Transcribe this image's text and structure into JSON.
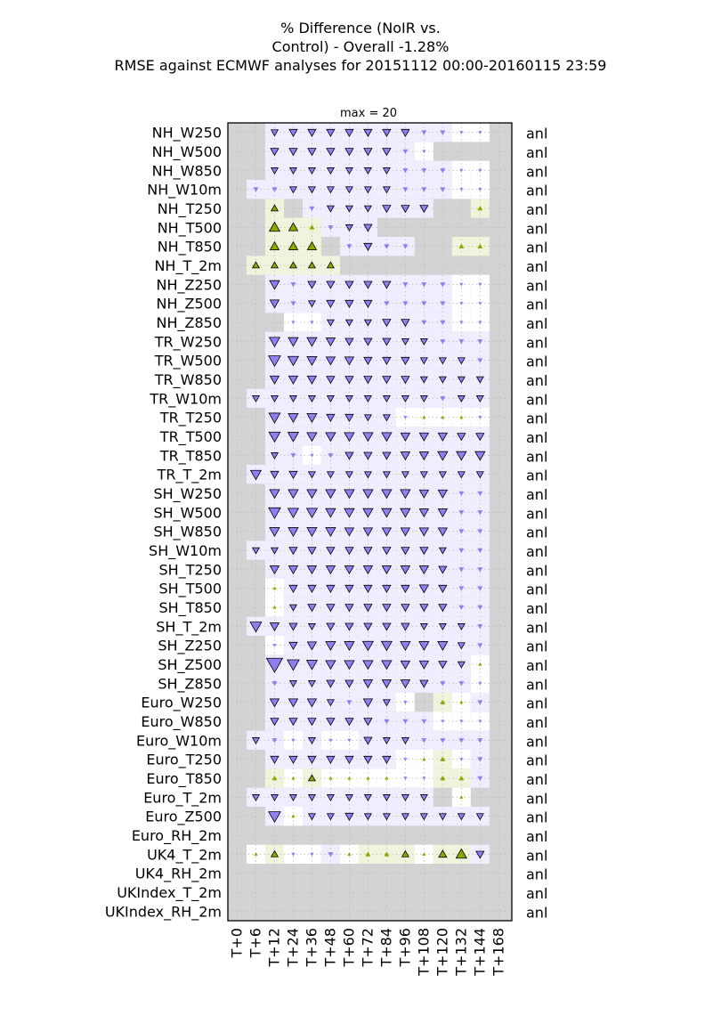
{
  "chart_data": {
    "type": "heatmap",
    "title_lines": [
      "% Difference (NoIR vs.",
      "Control) - Overall -1.28%",
      "RMSE against ECMWF analyses for 20151112 00:00-20160115 23:59"
    ],
    "subtitle": "max = 20",
    "x_ticks": [
      "T+0",
      "T+6",
      "T+12",
      "T+24",
      "T+36",
      "T+48",
      "T+60",
      "T+72",
      "T+84",
      "T+96",
      "T+108",
      "T+120",
      "T+132",
      "T+144",
      "T+168"
    ],
    "rows": [
      "NH_W250",
      "NH_W500",
      "NH_W850",
      "NH_W10m",
      "NH_T250",
      "NH_T500",
      "NH_T850",
      "NH_T_2m",
      "NH_Z250",
      "NH_Z500",
      "NH_Z850",
      "TR_W250",
      "TR_W500",
      "TR_W850",
      "TR_W10m",
      "TR_T250",
      "TR_T500",
      "TR_T850",
      "TR_T_2m",
      "SH_W250",
      "SH_W500",
      "SH_W850",
      "SH_W10m",
      "SH_T250",
      "SH_T500",
      "SH_T850",
      "SH_T_2m",
      "SH_Z250",
      "SH_Z500",
      "SH_Z850",
      "Euro_W250",
      "Euro_W850",
      "Euro_W10m",
      "Euro_T250",
      "Euro_T850",
      "Euro_T_2m",
      "Euro_Z500",
      "Euro_RH_2m",
      "UK4_T_2m",
      "UK4_RH_2m",
      "UKIndex_T_2m",
      "UKIndex_RH_2m"
    ],
    "right_labels": [
      "anl",
      "anl",
      "anl",
      "anl",
      "anl",
      "anl",
      "anl",
      "anl",
      "anl",
      "anl",
      "anl",
      "anl",
      "anl",
      "anl",
      "anl",
      "anl",
      "anl",
      "anl",
      "anl",
      "anl",
      "anl",
      "anl",
      "anl",
      "anl",
      "anl",
      "anl",
      "anl",
      "anl",
      "anl",
      "anl",
      "anl",
      "anl",
      "anl",
      "anl",
      "anl",
      "anl",
      "anl",
      "anl",
      "anl",
      "anl",
      "anl",
      "anl"
    ],
    "max": 20,
    "values": [
      [
        null,
        null,
        -2,
        -3,
        -3,
        -3,
        -3,
        -3,
        -3,
        -3,
        -1,
        -1,
        -0.5,
        -0.5,
        null
      ],
      [
        null,
        null,
        -3,
        -3,
        -3,
        -3,
        -3,
        -3,
        -3,
        -1,
        -0.5,
        null,
        null,
        null,
        null
      ],
      [
        null,
        null,
        -2,
        -2,
        -2,
        -2,
        -2,
        -2,
        -2,
        -1,
        -1,
        -1,
        -0.5,
        -0.5,
        null
      ],
      [
        null,
        -1,
        -1,
        -2,
        -2,
        -2,
        -2,
        -2,
        -2,
        -1,
        -1,
        -1,
        -0.5,
        -0.5,
        null
      ],
      [
        null,
        null,
        2,
        null,
        -1,
        -2,
        -2,
        -2,
        -3,
        -3,
        -3,
        null,
        null,
        1,
        null
      ],
      [
        null,
        null,
        6,
        4,
        1,
        -1,
        -2,
        -3,
        null,
        null,
        null,
        null,
        null,
        null,
        null
      ],
      [
        null,
        null,
        4,
        4,
        4,
        null,
        -1,
        -3,
        -1,
        -1,
        null,
        null,
        1,
        1,
        null
      ],
      [
        null,
        2,
        2,
        2,
        2,
        2,
        null,
        null,
        null,
        null,
        null,
        null,
        null,
        null,
        null
      ],
      [
        null,
        null,
        -5,
        -1,
        -3,
        -3,
        -3,
        -3,
        -3,
        -1,
        -1,
        -1,
        -0.5,
        -0.5,
        null
      ],
      [
        null,
        null,
        -4,
        -1,
        -2,
        -3,
        -3,
        -3,
        -1,
        -1,
        -1,
        -1,
        -0.5,
        -0.5,
        null
      ],
      [
        null,
        null,
        null,
        -0.5,
        -0.5,
        -2,
        -2,
        -2,
        -3,
        -3,
        -1,
        -1,
        -0.5,
        -0.5,
        null
      ],
      [
        null,
        null,
        -6,
        -5,
        -5,
        -4,
        -3,
        -3,
        -3,
        -2,
        -2,
        -1,
        -1,
        -1,
        null
      ],
      [
        null,
        null,
        -8,
        -6,
        -5,
        -4,
        -4,
        -3,
        -3,
        -3,
        -2,
        -2,
        -2,
        -1,
        null
      ],
      [
        null,
        null,
        -4,
        -4,
        -4,
        -3,
        -3,
        -3,
        -3,
        -3,
        -2,
        -2,
        -2,
        -2,
        null
      ],
      [
        null,
        -2,
        -2,
        -2,
        -2,
        -2,
        -2,
        -2,
        -2,
        -2,
        -2,
        -1,
        -2,
        -2,
        null
      ],
      [
        null,
        null,
        -7,
        -5,
        -5,
        -3,
        -3,
        -2,
        -2,
        -0.5,
        0.5,
        0.5,
        0.5,
        -0.5,
        null
      ],
      [
        null,
        null,
        -7,
        -6,
        -5,
        -5,
        -5,
        -5,
        -5,
        -4,
        -4,
        -4,
        -3,
        -3,
        null
      ],
      [
        null,
        null,
        -2,
        -1,
        -0.5,
        -1,
        -3,
        -3,
        -3,
        -4,
        -4,
        -5,
        -5,
        -5,
        null
      ],
      [
        null,
        -6,
        -3,
        -3,
        -2,
        -2,
        -2,
        -2,
        -2,
        -2,
        -2,
        -2,
        -2,
        -2,
        null
      ],
      [
        null,
        null,
        -5,
        -5,
        -5,
        -5,
        -5,
        -5,
        -5,
        -5,
        -4,
        -4,
        -1,
        -1,
        null
      ],
      [
        null,
        null,
        -8,
        -6,
        -6,
        -5,
        -5,
        -5,
        -5,
        -5,
        -4,
        -4,
        -1,
        -1,
        null
      ],
      [
        null,
        null,
        -5,
        -5,
        -5,
        -5,
        -4,
        -4,
        -4,
        -4,
        -4,
        -4,
        -1,
        -1,
        null
      ],
      [
        null,
        -2,
        -2,
        -3,
        -3,
        -3,
        -3,
        -3,
        -3,
        -3,
        -3,
        -2,
        -1,
        -1,
        null
      ],
      [
        null,
        null,
        -4,
        -4,
        -4,
        -4,
        -4,
        -4,
        -4,
        -4,
        -4,
        -3,
        -1,
        -1,
        null
      ],
      [
        null,
        null,
        0.5,
        -3,
        -3,
        -3,
        -3,
        -3,
        -3,
        -3,
        -4,
        -3,
        -1,
        -1,
        null
      ],
      [
        null,
        null,
        0.5,
        -2,
        -3,
        -3,
        -3,
        -3,
        -3,
        -3,
        -3,
        -3,
        -1,
        -1,
        null
      ],
      [
        null,
        -7,
        -4,
        -3,
        -2,
        -3,
        -3,
        -3,
        -3,
        -3,
        -2,
        -2,
        -2,
        -1,
        null
      ],
      [
        null,
        null,
        -0.5,
        -3,
        -4,
        -5,
        -5,
        -6,
        -6,
        -5,
        -5,
        -5,
        -2,
        -1,
        null
      ],
      [
        null,
        null,
        -16,
        -8,
        -6,
        -5,
        -5,
        -5,
        -5,
        -4,
        -4,
        -3,
        -2,
        0.5,
        null
      ],
      [
        null,
        null,
        -1,
        -2,
        -2,
        -3,
        -3,
        -4,
        -4,
        -4,
        -3,
        -1,
        -1,
        -0.5,
        null
      ],
      [
        null,
        null,
        -4,
        -4,
        -4,
        -2,
        -1,
        -4,
        -2,
        -0.5,
        null,
        1,
        0.5,
        -1,
        null
      ],
      [
        null,
        null,
        -3,
        -3,
        -3,
        -3,
        -3,
        -3,
        -1,
        -1,
        -1,
        -0.5,
        -0.5,
        -0.5,
        null
      ],
      [
        null,
        -2,
        -1,
        -0.5,
        -2,
        -0.5,
        -0.5,
        -3,
        -2,
        -2,
        -1,
        -1,
        -1,
        -1,
        null
      ],
      [
        null,
        null,
        -3,
        -3,
        -3,
        -3,
        -3,
        -3,
        -3,
        -0.5,
        0.5,
        1,
        -0.5,
        -1,
        null
      ],
      [
        null,
        null,
        1,
        0.5,
        2,
        0.5,
        0.5,
        0.5,
        0.5,
        -0.5,
        -0.5,
        1,
        1,
        -1,
        null
      ],
      [
        null,
        -2,
        -2,
        -2,
        -2,
        -2,
        -2,
        -2,
        -2,
        -2,
        -2,
        null,
        0.5,
        null,
        null
      ],
      [
        null,
        null,
        -8,
        0.5,
        -2,
        -2,
        -3,
        -2,
        -2,
        -2,
        -2,
        -2,
        -2,
        -2,
        null
      ],
      [
        null,
        null,
        null,
        null,
        null,
        null,
        null,
        null,
        null,
        null,
        null,
        null,
        null,
        null,
        null
      ],
      [
        null,
        0.5,
        2,
        -0.5,
        -0.5,
        -1,
        0.5,
        1,
        1,
        2,
        0.5,
        3,
        6,
        -3,
        null
      ],
      [
        null,
        null,
        null,
        null,
        null,
        null,
        null,
        null,
        null,
        null,
        null,
        null,
        null,
        null,
        null
      ],
      [
        null,
        null,
        null,
        null,
        null,
        null,
        null,
        null,
        null,
        null,
        null,
        null,
        null,
        null,
        null
      ],
      [
        null,
        null,
        null,
        null,
        null,
        null,
        null,
        null,
        null,
        null,
        null,
        null,
        null,
        null,
        null
      ]
    ],
    "colors": {
      "down": "#8f7ff0",
      "up": "#8aaa00",
      "down_bg": "#eeeeff",
      "up_bg": "#eef5dc",
      "missing": "#d3d3d3",
      "neutral": "#ffffff",
      "grid": "#bdbdbd"
    }
  }
}
